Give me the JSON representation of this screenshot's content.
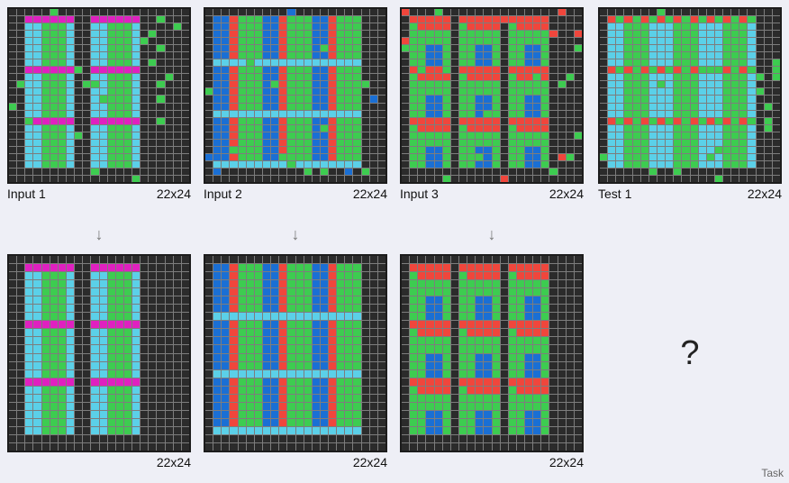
{
  "palette": {
    "0": "#2b2b2b",
    "1": "#e020c0",
    "2": "#5bd0e8",
    "3": "#3dcc50",
    "4": "#1a6fd4",
    "5": "#f0463c"
  },
  "panels": [
    {
      "id": "input-1",
      "label": "Input 1",
      "size": "22x24",
      "pattern": "pink",
      "noise": true
    },
    {
      "id": "input-2",
      "label": "Input 2",
      "size": "22x24",
      "pattern": "blue",
      "noise": true
    },
    {
      "id": "input-3",
      "label": "Input 3",
      "size": "22x24",
      "pattern": "red",
      "noise": true
    },
    {
      "id": "test-1",
      "label": "Test 1",
      "size": "22x24",
      "pattern": "test",
      "noise": true
    },
    {
      "id": "output-1",
      "label": "",
      "size": "22x24",
      "pattern": "pink",
      "noise": false
    },
    {
      "id": "output-2",
      "label": "",
      "size": "22x24",
      "pattern": "blue",
      "noise": false
    },
    {
      "id": "output-3",
      "label": "",
      "size": "22x24",
      "pattern": "red",
      "noise": false
    }
  ],
  "arrow_glyph": "↓",
  "question_mark": "?",
  "task_label": "Task"
}
